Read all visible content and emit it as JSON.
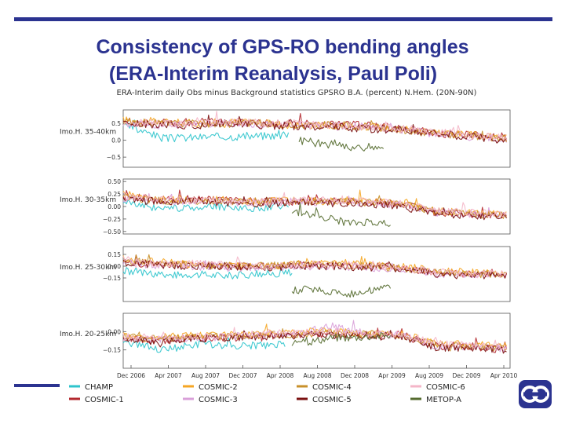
{
  "slide": {
    "title_line1": "Consistency of GPS-RO bending angles",
    "title_line2": "(ERA-Interim Reanalysis, Paul Poli)",
    "accent_color": "#2b3390",
    "logo_icon": "ecmwf-logo-icon"
  },
  "chart_data": {
    "type": "line",
    "title": "ERA-Interim daily Obs minus Background statistics GPSRO B.A. (percent) N.Hem. (20N-90N)",
    "x": [
      "Dec 2006",
      "Apr 2007",
      "Aug 2007",
      "Dec 2007",
      "Apr 2008",
      "Aug 2008",
      "Dec 2008",
      "Apr 2009",
      "Aug 2009",
      "Dec 2009",
      "Apr 2010"
    ],
    "panels": [
      {
        "label": "Imo.H. 35-40km",
        "yticks": [
          "0.5",
          "0.0",
          "−0.5"
        ],
        "ylim": [
          -0.8,
          0.9
        ],
        "series": [
          {
            "name": "CHAMP",
            "color": "#2ec4cc",
            "start": 0,
            "end": 4.7,
            "values": [
              0.45,
              0.05,
              0.1,
              0.12,
              0.15
            ]
          },
          {
            "name": "COSMIC-1",
            "color": "#b3282e",
            "start": 0,
            "end": 10.9,
            "values": [
              0.55,
              0.5,
              0.55,
              0.55,
              0.5,
              0.5,
              0.45,
              0.45,
              0.35,
              0.2,
              0.15,
              0.1
            ]
          },
          {
            "name": "COSMIC-2",
            "color": "#f5a623",
            "start": 0,
            "end": 10.9,
            "values": [
              0.6,
              0.55,
              0.5,
              0.55,
              0.5,
              0.45,
              0.45,
              0.4,
              0.35,
              0.25,
              0.15,
              0.05
            ]
          },
          {
            "name": "COSMIC-3",
            "color": "#d9a0d9",
            "start": 0,
            "end": 10.9,
            "values": [
              0.5,
              0.45,
              0.5,
              0.5,
              0.45,
              0.45,
              0.4,
              0.4,
              0.3,
              0.2,
              0.1,
              0.05
            ]
          },
          {
            "name": "COSMIC-4",
            "color": "#c8902a",
            "start": 0,
            "end": 10.9,
            "values": [
              0.55,
              0.5,
              0.5,
              0.5,
              0.5,
              0.45,
              0.45,
              0.4,
              0.3,
              0.2,
              0.12,
              0.05
            ]
          },
          {
            "name": "COSMIC-5",
            "color": "#7a1010",
            "start": 0,
            "end": 10.9,
            "values": [
              0.5,
              0.45,
              0.45,
              0.5,
              0.45,
              0.4,
              0.4,
              0.35,
              0.3,
              0.2,
              0.1,
              0.0
            ]
          },
          {
            "name": "COSMIC-6",
            "color": "#f4b6c8",
            "start": 0,
            "end": 10.9,
            "values": [
              0.55,
              0.5,
              0.5,
              0.55,
              0.5,
              0.5,
              0.45,
              0.4,
              0.35,
              0.25,
              0.15,
              0.05
            ]
          },
          {
            "name": "METOP-A",
            "color": "#556b2f",
            "start": 5.0,
            "end": 7.4,
            "values": [
              0.0,
              -0.1,
              -0.15,
              -0.25,
              -0.3
            ]
          }
        ]
      },
      {
        "label": "Imo.H. 30-35km",
        "yticks": [
          "0.50",
          "0.25",
          "0.00",
          "−0.25",
          "−0.50"
        ],
        "ylim": [
          -0.55,
          0.55
        ],
        "series": [
          {
            "name": "CHAMP",
            "color": "#2ec4cc",
            "start": 0,
            "end": 4.7,
            "values": [
              0.1,
              -0.05,
              -0.02,
              0.0,
              -0.05,
              0.05
            ]
          },
          {
            "name": "COSMIC-1",
            "color": "#b3282e",
            "start": 0,
            "end": 10.9,
            "values": [
              0.2,
              0.15,
              0.15,
              0.12,
              0.1,
              0.1,
              0.12,
              0.1,
              0.05,
              -0.12,
              -0.15,
              -0.2
            ]
          },
          {
            "name": "COSMIC-2",
            "color": "#f5a623",
            "start": 0,
            "end": 10.9,
            "values": [
              0.25,
              0.15,
              0.15,
              0.12,
              0.1,
              0.12,
              0.1,
              0.1,
              0.05,
              -0.1,
              -0.12,
              -0.18
            ]
          },
          {
            "name": "COSMIC-3",
            "color": "#d9a0d9",
            "start": 0,
            "end": 10.9,
            "values": [
              0.15,
              0.12,
              0.1,
              0.1,
              0.08,
              0.1,
              0.08,
              0.08,
              0.02,
              -0.12,
              -0.15,
              -0.2
            ]
          },
          {
            "name": "COSMIC-4",
            "color": "#c8902a",
            "start": 0,
            "end": 10.9,
            "values": [
              0.2,
              0.12,
              0.12,
              0.1,
              0.1,
              0.1,
              0.1,
              0.08,
              0.05,
              -0.1,
              -0.15,
              -0.18
            ]
          },
          {
            "name": "COSMIC-5",
            "color": "#7a1010",
            "start": 0,
            "end": 10.9,
            "values": [
              0.15,
              0.1,
              0.12,
              0.08,
              0.05,
              0.08,
              0.08,
              0.05,
              0.0,
              -0.15,
              -0.18,
              -0.22
            ]
          },
          {
            "name": "COSMIC-6",
            "color": "#f4b6c8",
            "start": 0,
            "end": 10.9,
            "values": [
              0.2,
              0.15,
              0.12,
              0.1,
              0.1,
              0.12,
              0.1,
              0.1,
              0.05,
              -0.1,
              -0.12,
              -0.18
            ]
          },
          {
            "name": "METOP-A",
            "color": "#556b2f",
            "start": 4.8,
            "end": 7.6,
            "values": [
              -0.1,
              -0.15,
              -0.25,
              -0.35,
              -0.3,
              -0.4
            ]
          }
        ]
      },
      {
        "label": "Imo.H. 25-30km",
        "yticks": [
          "0.15",
          "0.00",
          "−0.15"
        ],
        "ylim": [
          -0.45,
          0.25
        ],
        "series": [
          {
            "name": "CHAMP",
            "color": "#2ec4cc",
            "start": 0,
            "end": 4.8,
            "values": [
              -0.05,
              -0.12,
              -0.1,
              -0.12,
              -0.1,
              -0.08
            ]
          },
          {
            "name": "COSMIC-1",
            "color": "#b3282e",
            "start": 0,
            "end": 10.9,
            "values": [
              0.05,
              0.02,
              0.02,
              0.0,
              0.0,
              0.02,
              0.02,
              0.0,
              -0.02,
              -0.08,
              -0.1,
              -0.12
            ]
          },
          {
            "name": "COSMIC-2",
            "color": "#f5a623",
            "start": 0,
            "end": 10.9,
            "values": [
              0.1,
              0.05,
              0.03,
              0.02,
              0.0,
              0.03,
              0.03,
              0.02,
              0.0,
              -0.06,
              -0.08,
              -0.1
            ]
          },
          {
            "name": "COSMIC-3",
            "color": "#d9a0d9",
            "start": 0,
            "end": 10.9,
            "values": [
              0.05,
              0.0,
              0.0,
              -0.02,
              -0.02,
              0.0,
              0.0,
              -0.02,
              -0.03,
              -0.1,
              -0.1,
              -0.12
            ]
          },
          {
            "name": "COSMIC-4",
            "color": "#c8902a",
            "start": 0,
            "end": 10.9,
            "values": [
              0.08,
              0.03,
              0.02,
              0.0,
              0.0,
              0.02,
              0.02,
              0.0,
              -0.02,
              -0.08,
              -0.1,
              -0.1
            ]
          },
          {
            "name": "COSMIC-5",
            "color": "#7a1010",
            "start": 0,
            "end": 10.9,
            "values": [
              0.05,
              0.02,
              0.0,
              0.0,
              -0.02,
              0.0,
              0.0,
              -0.02,
              -0.03,
              -0.1,
              -0.12,
              -0.12
            ]
          },
          {
            "name": "COSMIC-6",
            "color": "#f4b6c8",
            "start": 0,
            "end": 10.9,
            "values": [
              0.08,
              0.03,
              0.03,
              0.02,
              0.0,
              0.02,
              0.02,
              0.0,
              -0.02,
              -0.08,
              -0.1,
              -0.1
            ]
          },
          {
            "name": "METOP-A",
            "color": "#556b2f",
            "start": 4.8,
            "end": 7.6,
            "values": [
              -0.3,
              -0.3,
              -0.32,
              -0.35,
              -0.3,
              -0.28
            ]
          }
        ]
      },
      {
        "label": "Imo.H. 20-25km",
        "yticks": [
          "0.00",
          "−0.15"
        ],
        "ylim": [
          -0.3,
          0.15
        ],
        "series": [
          {
            "name": "CHAMP",
            "color": "#2ec4cc",
            "start": 0,
            "end": 4.6,
            "values": [
              -0.08,
              -0.15,
              -0.1,
              -0.12,
              -0.1
            ]
          },
          {
            "name": "COSMIC-1",
            "color": "#b3282e",
            "start": 0,
            "end": 10.9,
            "values": [
              -0.05,
              -0.08,
              -0.05,
              -0.05,
              -0.05,
              -0.02,
              -0.02,
              -0.03,
              -0.03,
              -0.12,
              -0.12,
              -0.15
            ]
          },
          {
            "name": "COSMIC-2",
            "color": "#f5a623",
            "start": 0,
            "end": 10.9,
            "values": [
              -0.03,
              -0.05,
              -0.03,
              -0.03,
              -0.02,
              0.0,
              0.0,
              -0.02,
              -0.02,
              -0.1,
              -0.1,
              -0.12
            ]
          },
          {
            "name": "COSMIC-3",
            "color": "#d9a0d9",
            "start": 0,
            "end": 10.9,
            "values": [
              -0.05,
              -0.06,
              -0.05,
              -0.04,
              -0.03,
              -0.02,
              0.05,
              -0.02,
              -0.03,
              -0.12,
              -0.12,
              -0.14
            ]
          },
          {
            "name": "COSMIC-4",
            "color": "#c8902a",
            "start": 0,
            "end": 10.9,
            "values": [
              -0.04,
              -0.06,
              -0.04,
              -0.04,
              -0.03,
              -0.02,
              -0.01,
              -0.02,
              -0.03,
              -0.11,
              -0.12,
              -0.13
            ]
          },
          {
            "name": "COSMIC-5",
            "color": "#7a1010",
            "start": 0,
            "end": 10.9,
            "values": [
              -0.06,
              -0.08,
              -0.06,
              -0.05,
              -0.04,
              -0.03,
              -0.03,
              -0.03,
              -0.04,
              -0.13,
              -0.13,
              -0.15
            ]
          },
          {
            "name": "COSMIC-6",
            "color": "#f4b6c8",
            "start": 0,
            "end": 10.9,
            "values": [
              -0.04,
              -0.05,
              -0.04,
              -0.03,
              -0.02,
              -0.01,
              0.0,
              -0.02,
              -0.02,
              -0.1,
              -0.11,
              -0.12
            ]
          },
          {
            "name": "METOP-A",
            "color": "#556b2f",
            "start": 4.8,
            "end": 7.6,
            "values": [
              -0.1,
              -0.08,
              -0.05,
              -0.05,
              -0.04,
              -0.03
            ]
          }
        ]
      }
    ],
    "legend": [
      {
        "name": "CHAMP",
        "color": "#2ec4cc"
      },
      {
        "name": "COSMIC-2",
        "color": "#f5a623"
      },
      {
        "name": "COSMIC-4",
        "color": "#c8902a"
      },
      {
        "name": "COSMIC-6",
        "color": "#f4b6c8"
      },
      {
        "name": "COSMIC-1",
        "color": "#b3282e"
      },
      {
        "name": "COSMIC-3",
        "color": "#d9a0d9"
      },
      {
        "name": "COSMIC-5",
        "color": "#7a1010"
      },
      {
        "name": "METOP-A",
        "color": "#556b2f"
      }
    ],
    "legend_position": "bottom",
    "xlabel": "",
    "ylabel": "",
    "grid": false
  }
}
